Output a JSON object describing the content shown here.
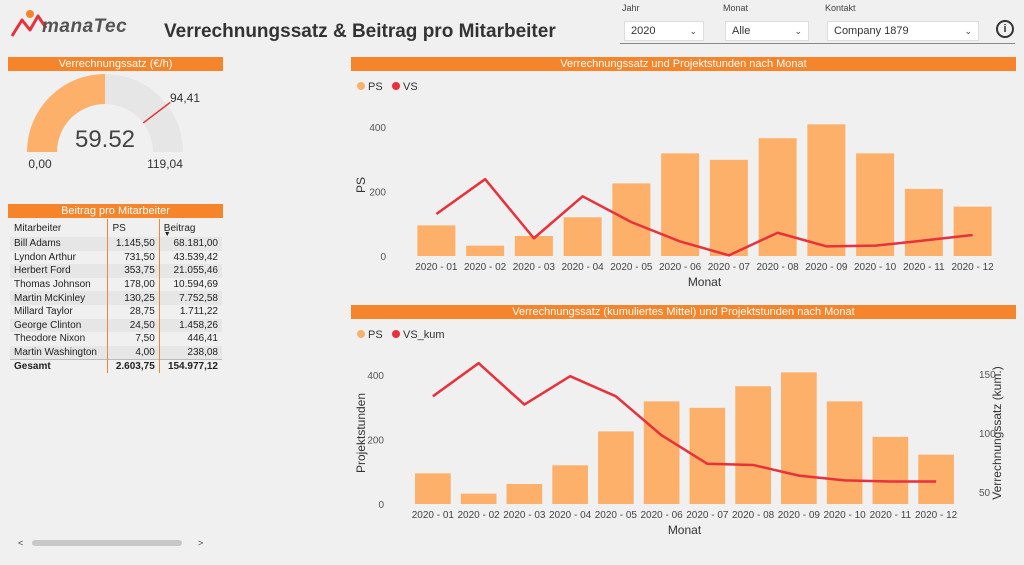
{
  "header": {
    "logo_text": "manaTec",
    "title": "Verrechnungssatz & Beitrag pro Mitarbeiter",
    "filters": [
      {
        "label": "Jahr",
        "value": "2020"
      },
      {
        "label": "Monat",
        "value": "Alle"
      },
      {
        "label": "Kontakt",
        "value": "Company 1879"
      }
    ],
    "info_glyph": "i"
  },
  "gauge": {
    "title": "Verrechnungssatz (€/h)",
    "value": 59.52,
    "value_label": "59.52",
    "min": 0,
    "max": 119.04,
    "min_label": "0,00",
    "max_label": "119,04",
    "target": 94.41,
    "target_label": "94,41",
    "fill_color": "#fdb06a",
    "track_color": "#e6e6e6",
    "target_color": "#e8313a"
  },
  "contrib": {
    "title": "Beitrag pro Mitarbeiter",
    "columns": [
      "Mitarbeiter",
      "PS",
      "Beitrag"
    ],
    "rows": [
      [
        "Bill Adams",
        "1.145,50",
        "68.181,00"
      ],
      [
        "Lyndon Arthur",
        "731,50",
        "43.539,42"
      ],
      [
        "Herbert Ford",
        "353,75",
        "21.055,46"
      ],
      [
        "Thomas Johnson",
        "178,00",
        "10.594,69"
      ],
      [
        "Martin McKinley",
        "130,25",
        "7.752,58"
      ],
      [
        "Millard Taylor",
        "28,75",
        "1.711,22"
      ],
      [
        "George Clinton",
        "24,50",
        "1.458,26"
      ],
      [
        "Theodore Nixon",
        "7,50",
        "446,41"
      ],
      [
        "Martin Washington",
        "4,00",
        "238,08"
      ]
    ],
    "total": [
      "Gesamt",
      "2.603,75",
      "154.977,12"
    ],
    "scroll_left": "<",
    "scroll_right": ">"
  },
  "chart_data": [
    {
      "type": "bar",
      "title": "Verrechnungssatz und Projektstunden nach Monat",
      "categories": [
        "2020 - 01",
        "2020 - 02",
        "2020 - 03",
        "2020 - 04",
        "2020 - 05",
        "2020 - 06",
        "2020 - 07",
        "2020 - 08",
        "2020 - 09",
        "2020 - 10",
        "2020 - 11",
        "2020 - 12"
      ],
      "series": [
        {
          "name": "PS",
          "kind": "bar",
          "color": "#fdb06a",
          "values": [
            95,
            32,
            62,
            120,
            225,
            318,
            298,
            365,
            408,
            318,
            208,
            153
          ]
        },
        {
          "name": "VS",
          "kind": "line",
          "color": "#e8313a",
          "values": [
            130,
            238,
            55,
            185,
            105,
            45,
            2,
            72,
            30,
            32,
            48,
            65
          ]
        }
      ],
      "xlabel": "Monat",
      "ylabel": "PS",
      "yticks": [
        0,
        200,
        400
      ],
      "ylim": [
        0,
        440
      ],
      "legend": [
        "PS",
        "VS"
      ]
    },
    {
      "type": "bar",
      "title": "Verrechnungssatz (kumuliertes Mittel) und Projektstunden nach Monat",
      "categories": [
        "2020 - 01",
        "2020 - 02",
        "2020 - 03",
        "2020 - 04",
        "2020 - 05",
        "2020 - 06",
        "2020 - 07",
        "2020 - 08",
        "2020 - 09",
        "2020 - 10",
        "2020 - 11",
        "2020 - 12"
      ],
      "series": [
        {
          "name": "PS",
          "kind": "bar",
          "color": "#fdb06a",
          "values": [
            95,
            32,
            62,
            120,
            225,
            318,
            298,
            365,
            408,
            318,
            208,
            153
          ]
        },
        {
          "name": "VS_kum",
          "kind": "line",
          "color": "#e8313a",
          "axis": "right",
          "values": [
            131,
            159,
            124,
            148,
            131,
            98,
            74,
            73,
            64,
            60,
            59,
            59
          ]
        }
      ],
      "xlabel": "Monat",
      "ylabel": "Projektstunden",
      "y2label": "Verrechnungssatz (kum.)",
      "yticks": [
        0,
        200,
        400
      ],
      "ylim": [
        0,
        440
      ],
      "y2ticks": [
        50,
        100,
        150
      ],
      "y2lim": [
        40,
        160
      ],
      "legend": [
        "PS",
        "VS_kum"
      ]
    }
  ]
}
